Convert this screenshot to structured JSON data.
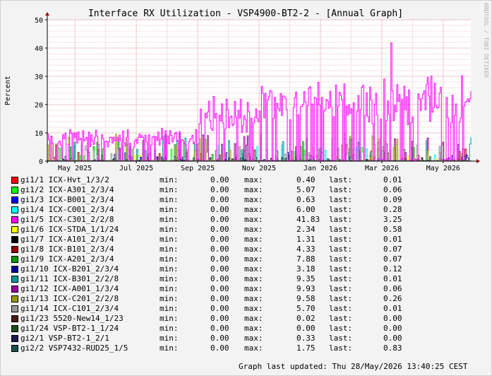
{
  "chart_data": {
    "type": "line",
    "title": "Interface RX Utilization - VSP4900-BT2-2 - [Annual Graph]",
    "ylabel": "Percent",
    "watermark": "RRDTOOL / TOBI OETIKER",
    "ylim": [
      0,
      50
    ],
    "yticks": [
      "0",
      "10",
      "20",
      "30",
      "40",
      "50"
    ],
    "xticks": [
      "May 2025",
      "Jul 2025",
      "Sep 2025",
      "Nov 2025",
      "Jan 2026",
      "Mar 2026",
      "May 2026"
    ],
    "xtick_months": [
      1,
      3,
      5,
      7,
      9,
      11,
      13
    ],
    "x_months_range": [
      0.1,
      13.9
    ],
    "grid": true,
    "series": [
      {
        "name": "gi1/1 ICX-Hvt_1/3/2",
        "color": "#ff0000",
        "min": "0.00",
        "max": "0.40",
        "last": "0.01"
      },
      {
        "name": "gi1/2 ICX-A301_2/3/4",
        "color": "#00ff00",
        "min": "0.00",
        "max": "5.07",
        "last": "0.06"
      },
      {
        "name": "gi1/3 ICX-B001_2/3/4",
        "color": "#0000ff",
        "min": "0.00",
        "max": "0.63",
        "last": "0.09"
      },
      {
        "name": "gi1/4 ICX-C001_2/3/4",
        "color": "#00ffff",
        "min": "0.00",
        "max": "6.00",
        "last": "0.28"
      },
      {
        "name": "gi1/5 ICX-C301_2/2/8",
        "color": "#ff00ff",
        "min": "0.00",
        "max": "41.83",
        "last": "3.25"
      },
      {
        "name": "gi1/6 ICX-STDA_1/1/24",
        "color": "#ffff00",
        "min": "0.00",
        "max": "2.34",
        "last": "0.58"
      },
      {
        "name": "gi1/7 ICX-A101_2/3/4",
        "color": "#000000",
        "min": "0.00",
        "max": "1.31",
        "last": "0.01"
      },
      {
        "name": "gi1/8 ICX-B101_2/3/4",
        "color": "#990000",
        "min": "0.00",
        "max": "4.33",
        "last": "0.07"
      },
      {
        "name": "gi1/9 ICX-A201_2/3/4",
        "color": "#009900",
        "min": "0.00",
        "max": "7.88",
        "last": "0.07"
      },
      {
        "name": "gi1/10 ICX-B201_2/3/4",
        "color": "#000099",
        "min": "0.00",
        "max": "3.18",
        "last": "0.12"
      },
      {
        "name": "gi1/11 ICX-B301_2/2/8",
        "color": "#009999",
        "min": "0.00",
        "max": "9.35",
        "last": "0.01"
      },
      {
        "name": "gi1/12 ICX-A001_1/3/4",
        "color": "#990099",
        "min": "0.00",
        "max": "9.93",
        "last": "0.06"
      },
      {
        "name": "gi1/13 ICX-C201_2/2/8",
        "color": "#999900",
        "min": "0.00",
        "max": "9.58",
        "last": "0.26"
      },
      {
        "name": "gi1/14 ICX-C101_2/3/4",
        "color": "#999999",
        "min": "0.00",
        "max": "5.70",
        "last": "0.01"
      },
      {
        "name": "gi1/23 5520-New14_1/23",
        "color": "#4d1a1a",
        "min": "0.00",
        "max": "0.02",
        "last": "0.00"
      },
      {
        "name": "gi1/24 VSP-BT2-1_1/24",
        "color": "#1a4d1a",
        "min": "0.00",
        "max": "0.00",
        "last": "0.00"
      },
      {
        "name": "gi2/1 VSP-BT2-1_2/1",
        "color": "#1a1a4d",
        "min": "0.00",
        "max": "0.33",
        "last": "0.00"
      },
      {
        "name": "gi2/2 VSP7432-RUD25_1/5",
        "color": "#1a4d4d",
        "min": "0.00",
        "max": "1.75",
        "last": "0.83"
      }
    ],
    "legend_labels": {
      "min": "min:",
      "max": "max:",
      "last": "last:"
    }
  },
  "footer": "Graph last updated: Thu 28/May/2026 13:40:25 CEST"
}
